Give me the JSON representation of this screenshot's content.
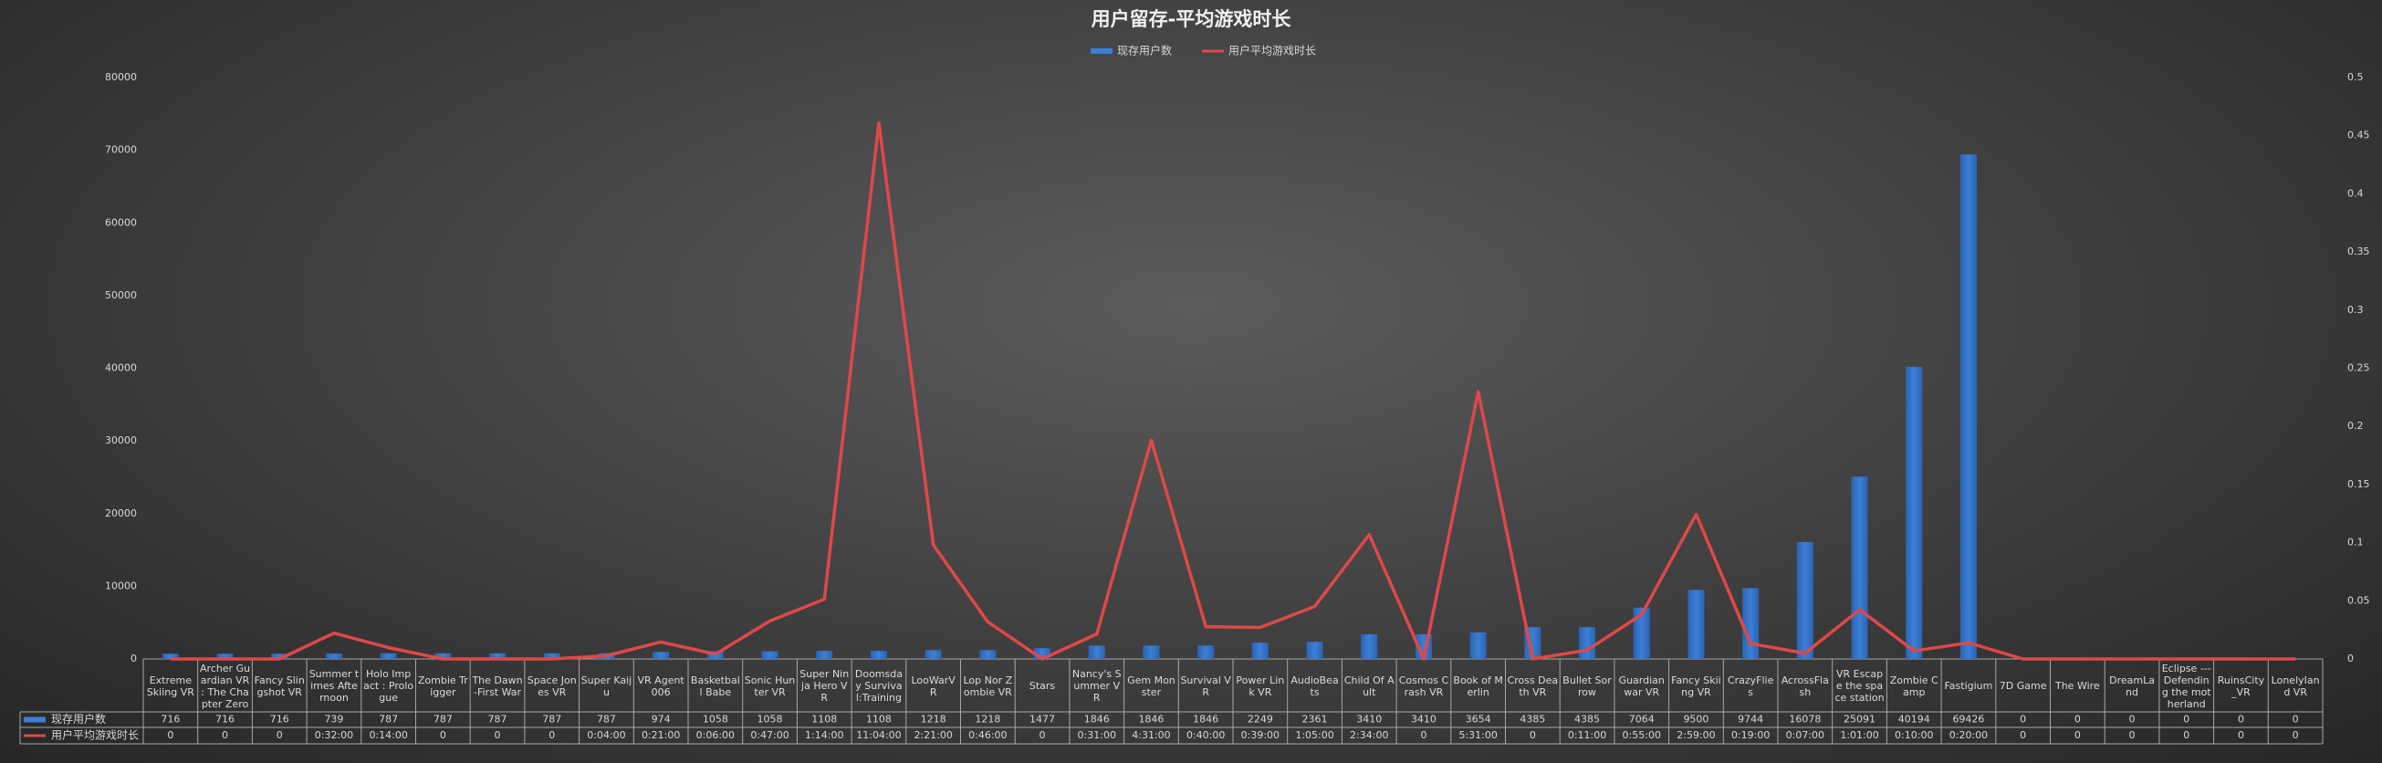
{
  "chart_data": {
    "type": "bar",
    "title": "用户留存-平均游戏时长",
    "categories": [
      "Extreme Skiing VR",
      "Archer Guardian VR : The Chapter Zero",
      "Fancy Slingshot VR",
      "Summer times Afternoon",
      "Holo Impact : Prologue",
      "Zombie Trigger",
      "The Dawn-First War",
      "Space Jones VR",
      "Super Kaiju",
      "VR Agent 006",
      "Basketball Babe",
      "Sonic Hunter VR",
      "Super Ninja Hero VR",
      "Doomsday Survival:Training",
      "LooWarVR",
      "Lop Nor Zombie VR",
      "Stars",
      "Nancy's Summer VR",
      "Gem Monster",
      "Survival VR",
      "Power Link VR",
      "AudioBeats",
      "Child Of Ault",
      "Cosmos Crash VR",
      "Book of Merlin",
      "Cross Death VR",
      "Bullet Sorrow",
      "Guardian war VR",
      "Fancy Skiing VR",
      "CrazyFlies",
      "AcrossFlash",
      "VR Escape the space station",
      "Zombie Camp",
      "Fastigium",
      "7D Game",
      "The Wire",
      "DreamLand",
      "Eclipse --- Defending the motherland",
      "RuinsCity_VR",
      "LonelyIand VR"
    ],
    "series": [
      {
        "name": "现存用户数",
        "type": "bar",
        "color": "#3d7fd6",
        "values": [
          716,
          716,
          716,
          739,
          787,
          787,
          787,
          787,
          787,
          974,
          1058,
          1058,
          1108,
          1108,
          1218,
          1218,
          1477,
          1846,
          1846,
          1846,
          2249,
          2361,
          3410,
          3410,
          3654,
          4385,
          4385,
          7064,
          9500,
          9744,
          16078,
          25091,
          40194,
          69426,
          0,
          0,
          0,
          0,
          0,
          0
        ]
      },
      {
        "name": "用户平均游戏时长",
        "type": "line",
        "axis": "y2",
        "color": "#e04848",
        "values": [
          0,
          0,
          0,
          0.02222,
          0.00972,
          0,
          0,
          0,
          0.00278,
          0.01458,
          0.00417,
          0.03264,
          0.05139,
          0.46111,
          0.09792,
          0.03194,
          0,
          0.02153,
          0.18819,
          0.02778,
          0.02708,
          0.04514,
          0.10694,
          0,
          0.22986,
          0,
          0.00764,
          0.03819,
          0.12431,
          0.01319,
          0.00486,
          0.04236,
          0.00694,
          0.01389,
          0,
          0,
          0,
          0,
          0,
          0
        ],
        "value_labels": [
          "0",
          "0",
          "0",
          "0:32:00",
          "0:14:00",
          "0",
          "0",
          "0",
          "0:04:00",
          "0:21:00",
          "0:06:00",
          "0:47:00",
          "1:14:00",
          "11:04:00",
          "2:21:00",
          "0:46:00",
          "0",
          "0:31:00",
          "4:31:00",
          "0:40:00",
          "0:39:00",
          "1:05:00",
          "2:34:00",
          "0",
          "5:31:00",
          "0",
          "0:11:00",
          "0:55:00",
          "2:59:00",
          "0:19:00",
          "0:07:00",
          "1:01:00",
          "0:10:00",
          "0:20:00",
          "0",
          "0",
          "0",
          "0",
          "0",
          "0"
        ]
      }
    ],
    "ylim": [
      0,
      80000
    ],
    "yticks": [
      0,
      10000,
      20000,
      30000,
      40000,
      50000,
      60000,
      70000,
      80000
    ],
    "y2lim": [
      0,
      0.5
    ],
    "y2ticks": [
      0,
      0.05,
      0.1,
      0.15,
      0.2,
      0.25,
      0.3,
      0.35,
      0.4,
      0.45,
      0.5
    ],
    "grid": false,
    "legend": "top"
  }
}
